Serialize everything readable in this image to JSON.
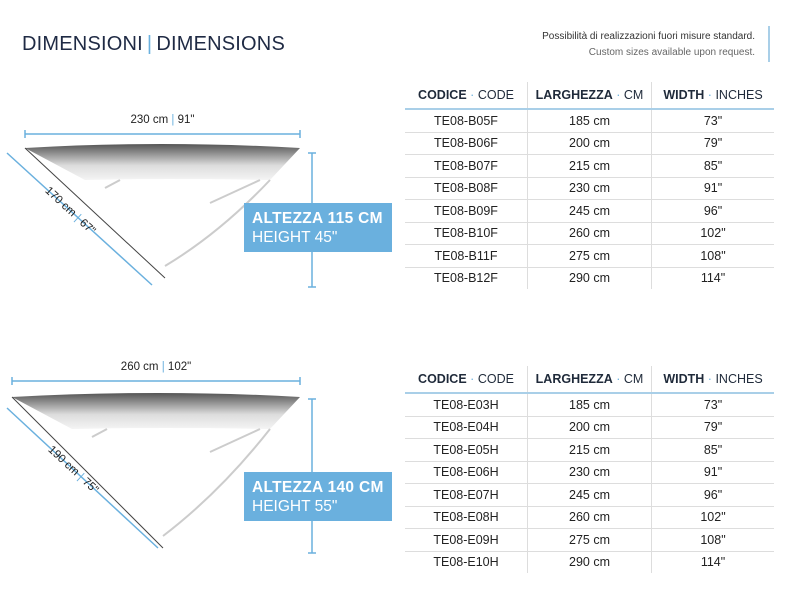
{
  "header": {
    "title_it": "DIMENSIONI",
    "title_en": "DIMENSIONS",
    "note_it": "Possibilità di realizzazioni fuori misure standard.",
    "note_en": "Custom sizes available upon request."
  },
  "colors": {
    "accent": "#6ab0de",
    "text": "#1f2a44"
  },
  "columns": {
    "code_it": "CODICE",
    "code_en": "CODE",
    "width_cm_it": "LARGHEZZA",
    "width_cm_en": "CM",
    "width_in_it": "WIDTH",
    "width_in_en": "INCHES",
    "dot": "·"
  },
  "sections": [
    {
      "width_label": "230 cm",
      "width_label_in": "91\"",
      "depth_label": "170 cm",
      "depth_label_in": "67\"",
      "height_it": "ALTEZZA 115 CM",
      "height_en": "HEIGHT 45\"",
      "rows": [
        [
          "TE08-B05F",
          "185 cm",
          "73\""
        ],
        [
          "TE08-B06F",
          "200 cm",
          "79\""
        ],
        [
          "TE08-B07F",
          "215 cm",
          "85\""
        ],
        [
          "TE08-B08F",
          "230 cm",
          "91\""
        ],
        [
          "TE08-B09F",
          "245 cm",
          "96\""
        ],
        [
          "TE08-B10F",
          "260 cm",
          "102\""
        ],
        [
          "TE08-B11F",
          "275 cm",
          "108\""
        ],
        [
          "TE08-B12F",
          "290 cm",
          "114\""
        ]
      ]
    },
    {
      "width_label": "260 cm",
      "width_label_in": "102\"",
      "depth_label": "190 cm",
      "depth_label_in": "75\"",
      "height_it": "ALTEZZA 140 CM",
      "height_en": "HEIGHT 55\"",
      "rows": [
        [
          "TE08-E03H",
          "185 cm",
          "73\""
        ],
        [
          "TE08-E04H",
          "200 cm",
          "79\""
        ],
        [
          "TE08-E05H",
          "215 cm",
          "85\""
        ],
        [
          "TE08-E06H",
          "230 cm",
          "91\""
        ],
        [
          "TE08-E07H",
          "245 cm",
          "96\""
        ],
        [
          "TE08-E08H",
          "260 cm",
          "102\""
        ],
        [
          "TE08-E09H",
          "275 cm",
          "108\""
        ],
        [
          "TE08-E10H",
          "290 cm",
          "114\""
        ]
      ]
    }
  ]
}
